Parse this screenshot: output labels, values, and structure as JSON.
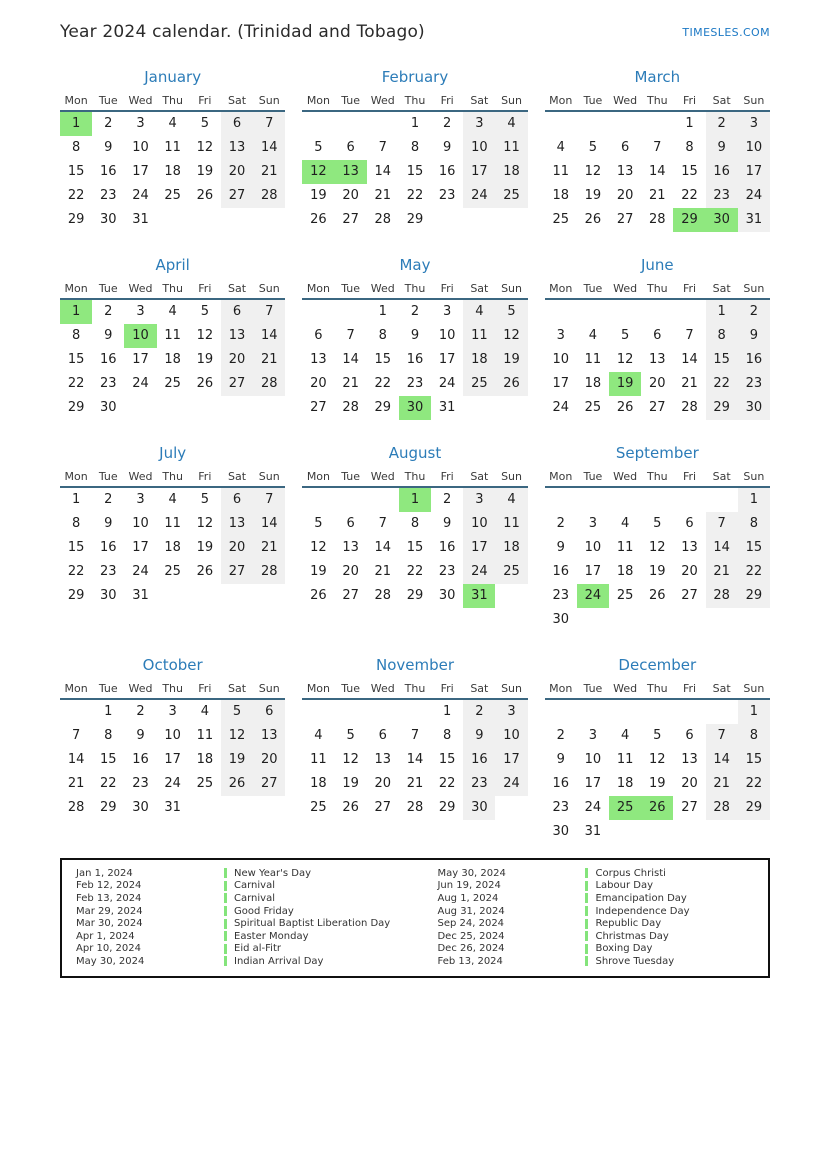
{
  "header": {
    "title": "Year 2024 calendar. (Trinidad and Tobago)",
    "site": "TIMESLES.COM"
  },
  "colors": {
    "accent_blue": "#2c7cb8",
    "link_blue": "#1b78c4",
    "holiday_green": "#8fe87f",
    "legend_bar_green": "#84e47b",
    "weekend_gray": "#f0f0f0",
    "header_underline": "#3b6781"
  },
  "calendar": {
    "year": "2024",
    "weekdays": [
      "Mon",
      "Tue",
      "Wed",
      "Thu",
      "Fri",
      "Sat",
      "Sun"
    ],
    "months": [
      {
        "name": "January",
        "highlights": [
          1
        ],
        "weeks": [
          [
            1,
            2,
            3,
            4,
            5,
            6,
            7
          ],
          [
            8,
            9,
            10,
            11,
            12,
            13,
            14
          ],
          [
            15,
            16,
            17,
            18,
            19,
            20,
            21
          ],
          [
            22,
            23,
            24,
            25,
            26,
            27,
            28
          ],
          [
            29,
            30,
            31,
            null,
            null,
            null,
            null
          ]
        ]
      },
      {
        "name": "February",
        "highlights": [
          12,
          13
        ],
        "weeks": [
          [
            null,
            null,
            null,
            1,
            2,
            3,
            4
          ],
          [
            5,
            6,
            7,
            8,
            9,
            10,
            11
          ],
          [
            12,
            13,
            14,
            15,
            16,
            17,
            18
          ],
          [
            19,
            20,
            21,
            22,
            23,
            24,
            25
          ],
          [
            26,
            27,
            28,
            29,
            null,
            null,
            null
          ]
        ]
      },
      {
        "name": "March",
        "highlights": [
          29,
          30
        ],
        "weeks": [
          [
            null,
            null,
            null,
            null,
            1,
            2,
            3
          ],
          [
            4,
            5,
            6,
            7,
            8,
            9,
            10
          ],
          [
            11,
            12,
            13,
            14,
            15,
            16,
            17
          ],
          [
            18,
            19,
            20,
            21,
            22,
            23,
            24
          ],
          [
            25,
            26,
            27,
            28,
            29,
            30,
            31
          ]
        ]
      },
      {
        "name": "April",
        "highlights": [
          1,
          10
        ],
        "weeks": [
          [
            1,
            2,
            3,
            4,
            5,
            6,
            7
          ],
          [
            8,
            9,
            10,
            11,
            12,
            13,
            14
          ],
          [
            15,
            16,
            17,
            18,
            19,
            20,
            21
          ],
          [
            22,
            23,
            24,
            25,
            26,
            27,
            28
          ],
          [
            29,
            30,
            null,
            null,
            null,
            null,
            null
          ]
        ]
      },
      {
        "name": "May",
        "highlights": [
          30
        ],
        "weeks": [
          [
            null,
            null,
            1,
            2,
            3,
            4,
            5
          ],
          [
            6,
            7,
            8,
            9,
            10,
            11,
            12
          ],
          [
            13,
            14,
            15,
            16,
            17,
            18,
            19
          ],
          [
            20,
            21,
            22,
            23,
            24,
            25,
            26
          ],
          [
            27,
            28,
            29,
            30,
            31,
            null,
            null
          ]
        ]
      },
      {
        "name": "June",
        "highlights": [
          19
        ],
        "weeks": [
          [
            null,
            null,
            null,
            null,
            null,
            1,
            2
          ],
          [
            3,
            4,
            5,
            6,
            7,
            8,
            9
          ],
          [
            10,
            11,
            12,
            13,
            14,
            15,
            16
          ],
          [
            17,
            18,
            19,
            20,
            21,
            22,
            23
          ],
          [
            24,
            25,
            26,
            27,
            28,
            29,
            30
          ]
        ]
      },
      {
        "name": "July",
        "highlights": [],
        "weeks": [
          [
            1,
            2,
            3,
            4,
            5,
            6,
            7
          ],
          [
            8,
            9,
            10,
            11,
            12,
            13,
            14
          ],
          [
            15,
            16,
            17,
            18,
            19,
            20,
            21
          ],
          [
            22,
            23,
            24,
            25,
            26,
            27,
            28
          ],
          [
            29,
            30,
            31,
            null,
            null,
            null,
            null
          ]
        ]
      },
      {
        "name": "August",
        "highlights": [
          1,
          31
        ],
        "weeks": [
          [
            null,
            null,
            null,
            1,
            2,
            3,
            4
          ],
          [
            5,
            6,
            7,
            8,
            9,
            10,
            11
          ],
          [
            12,
            13,
            14,
            15,
            16,
            17,
            18
          ],
          [
            19,
            20,
            21,
            22,
            23,
            24,
            25
          ],
          [
            26,
            27,
            28,
            29,
            30,
            31,
            null
          ]
        ]
      },
      {
        "name": "September",
        "highlights": [
          24
        ],
        "weeks": [
          [
            null,
            null,
            null,
            null,
            null,
            null,
            1
          ],
          [
            2,
            3,
            4,
            5,
            6,
            7,
            8
          ],
          [
            9,
            10,
            11,
            12,
            13,
            14,
            15
          ],
          [
            16,
            17,
            18,
            19,
            20,
            21,
            22
          ],
          [
            23,
            24,
            25,
            26,
            27,
            28,
            29
          ],
          [
            30,
            null,
            null,
            null,
            null,
            null,
            null
          ]
        ]
      },
      {
        "name": "October",
        "highlights": [],
        "weeks": [
          [
            null,
            1,
            2,
            3,
            4,
            5,
            6
          ],
          [
            7,
            8,
            9,
            10,
            11,
            12,
            13
          ],
          [
            14,
            15,
            16,
            17,
            18,
            19,
            20
          ],
          [
            21,
            22,
            23,
            24,
            25,
            26,
            27
          ],
          [
            28,
            29,
            30,
            31,
            null,
            null,
            null
          ]
        ]
      },
      {
        "name": "November",
        "highlights": [],
        "weeks": [
          [
            null,
            null,
            null,
            null,
            1,
            2,
            3
          ],
          [
            4,
            5,
            6,
            7,
            8,
            9,
            10
          ],
          [
            11,
            12,
            13,
            14,
            15,
            16,
            17
          ],
          [
            18,
            19,
            20,
            21,
            22,
            23,
            24
          ],
          [
            25,
            26,
            27,
            28,
            29,
            30,
            null
          ]
        ]
      },
      {
        "name": "December",
        "highlights": [
          25,
          26
        ],
        "weeks": [
          [
            null,
            null,
            null,
            null,
            null,
            null,
            1
          ],
          [
            2,
            3,
            4,
            5,
            6,
            7,
            8
          ],
          [
            9,
            10,
            11,
            12,
            13,
            14,
            15
          ],
          [
            16,
            17,
            18,
            19,
            20,
            21,
            22
          ],
          [
            23,
            24,
            25,
            26,
            27,
            28,
            29
          ],
          [
            30,
            31,
            null,
            null,
            null,
            null,
            null
          ]
        ]
      }
    ]
  },
  "legend": {
    "columns": [
      [
        {
          "date": "Jan 1, 2024",
          "name": "New Year's Day"
        },
        {
          "date": "Feb 12, 2024",
          "name": "Carnival"
        },
        {
          "date": "Feb 13, 2024",
          "name": "Carnival"
        },
        {
          "date": "Mar 29, 2024",
          "name": "Good Friday"
        },
        {
          "date": "Mar 30, 2024",
          "name": "Spiritual Baptist Liberation Day"
        },
        {
          "date": "Apr 1, 2024",
          "name": "Easter Monday"
        },
        {
          "date": "Apr 10, 2024",
          "name": "Eid al-Fitr"
        },
        {
          "date": "May 30, 2024",
          "name": "Indian Arrival Day"
        }
      ],
      [
        {
          "date": "May 30, 2024",
          "name": "Corpus Christi"
        },
        {
          "date": "Jun 19, 2024",
          "name": "Labour Day"
        },
        {
          "date": "Aug 1, 2024",
          "name": "Emancipation Day"
        },
        {
          "date": "Aug 31, 2024",
          "name": "Independence Day"
        },
        {
          "date": "Sep 24, 2024",
          "name": "Republic Day"
        },
        {
          "date": "Dec 25, 2024",
          "name": "Christmas Day"
        },
        {
          "date": "Dec 26, 2024",
          "name": "Boxing Day"
        },
        {
          "date": "Feb 13, 2024",
          "name": "Shrove Tuesday"
        }
      ]
    ]
  }
}
